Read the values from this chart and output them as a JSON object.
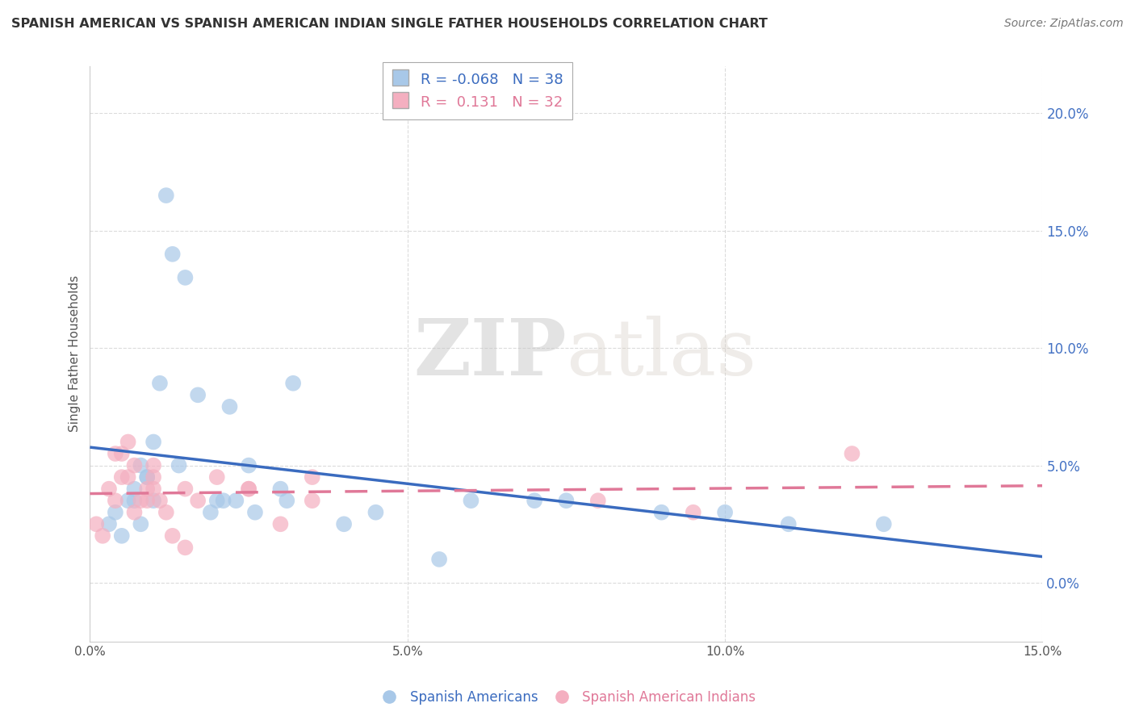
{
  "title": "SPANISH AMERICAN VS SPANISH AMERICAN INDIAN SINGLE FATHER HOUSEHOLDS CORRELATION CHART",
  "source": "Source: ZipAtlas.com",
  "ylabel": "Single Father Households",
  "xlim": [
    0.0,
    15.0
  ],
  "ylim": [
    -2.5,
    22.0
  ],
  "ytick_vals": [
    0.0,
    5.0,
    10.0,
    15.0,
    20.0
  ],
  "xtick_vals": [
    0.0,
    5.0,
    10.0,
    15.0
  ],
  "blue_label": "Spanish Americans",
  "pink_label": "Spanish American Indians",
  "blue_R": -0.068,
  "blue_N": 38,
  "pink_R": 0.131,
  "pink_N": 32,
  "blue_color": "#a8c8e8",
  "pink_color": "#f4afc0",
  "blue_line_color": "#3a6bbf",
  "pink_line_color": "#e07898",
  "blue_x": [
    0.3,
    0.4,
    0.5,
    0.6,
    0.7,
    0.7,
    0.8,
    0.8,
    0.9,
    0.9,
    1.0,
    1.0,
    1.1,
    1.2,
    1.3,
    1.4,
    1.5,
    1.7,
    1.9,
    2.0,
    2.1,
    2.2,
    2.3,
    2.5,
    2.6,
    3.0,
    3.1,
    3.2,
    4.0,
    4.5,
    5.5,
    6.0,
    7.0,
    7.5,
    9.0,
    10.0,
    11.0,
    12.5
  ],
  "blue_y": [
    2.5,
    3.0,
    2.0,
    3.5,
    3.5,
    4.0,
    2.5,
    5.0,
    4.5,
    4.5,
    3.5,
    6.0,
    8.5,
    16.5,
    14.0,
    5.0,
    13.0,
    8.0,
    3.0,
    3.5,
    3.5,
    7.5,
    3.5,
    5.0,
    3.0,
    4.0,
    3.5,
    8.5,
    2.5,
    3.0,
    1.0,
    3.5,
    3.5,
    3.5,
    3.0,
    3.0,
    2.5,
    2.5
  ],
  "pink_x": [
    0.1,
    0.2,
    0.3,
    0.4,
    0.4,
    0.5,
    0.5,
    0.6,
    0.6,
    0.7,
    0.7,
    0.8,
    0.9,
    0.9,
    1.0,
    1.0,
    1.0,
    1.1,
    1.2,
    1.3,
    1.5,
    1.5,
    1.7,
    2.0,
    2.5,
    2.5,
    3.0,
    3.5,
    3.5,
    8.0,
    9.5,
    12.0
  ],
  "pink_y": [
    2.5,
    2.0,
    4.0,
    5.5,
    3.5,
    4.5,
    5.5,
    6.0,
    4.5,
    3.0,
    5.0,
    3.5,
    4.0,
    3.5,
    4.0,
    4.5,
    5.0,
    3.5,
    3.0,
    2.0,
    4.0,
    1.5,
    3.5,
    4.5,
    4.0,
    4.0,
    2.5,
    3.5,
    4.5,
    3.5,
    3.0,
    5.5
  ],
  "background_color": "#ffffff",
  "grid_color": "#cccccc",
  "tick_color": "#4472c4",
  "watermark_zip": "ZIP",
  "watermark_atlas": "atlas"
}
